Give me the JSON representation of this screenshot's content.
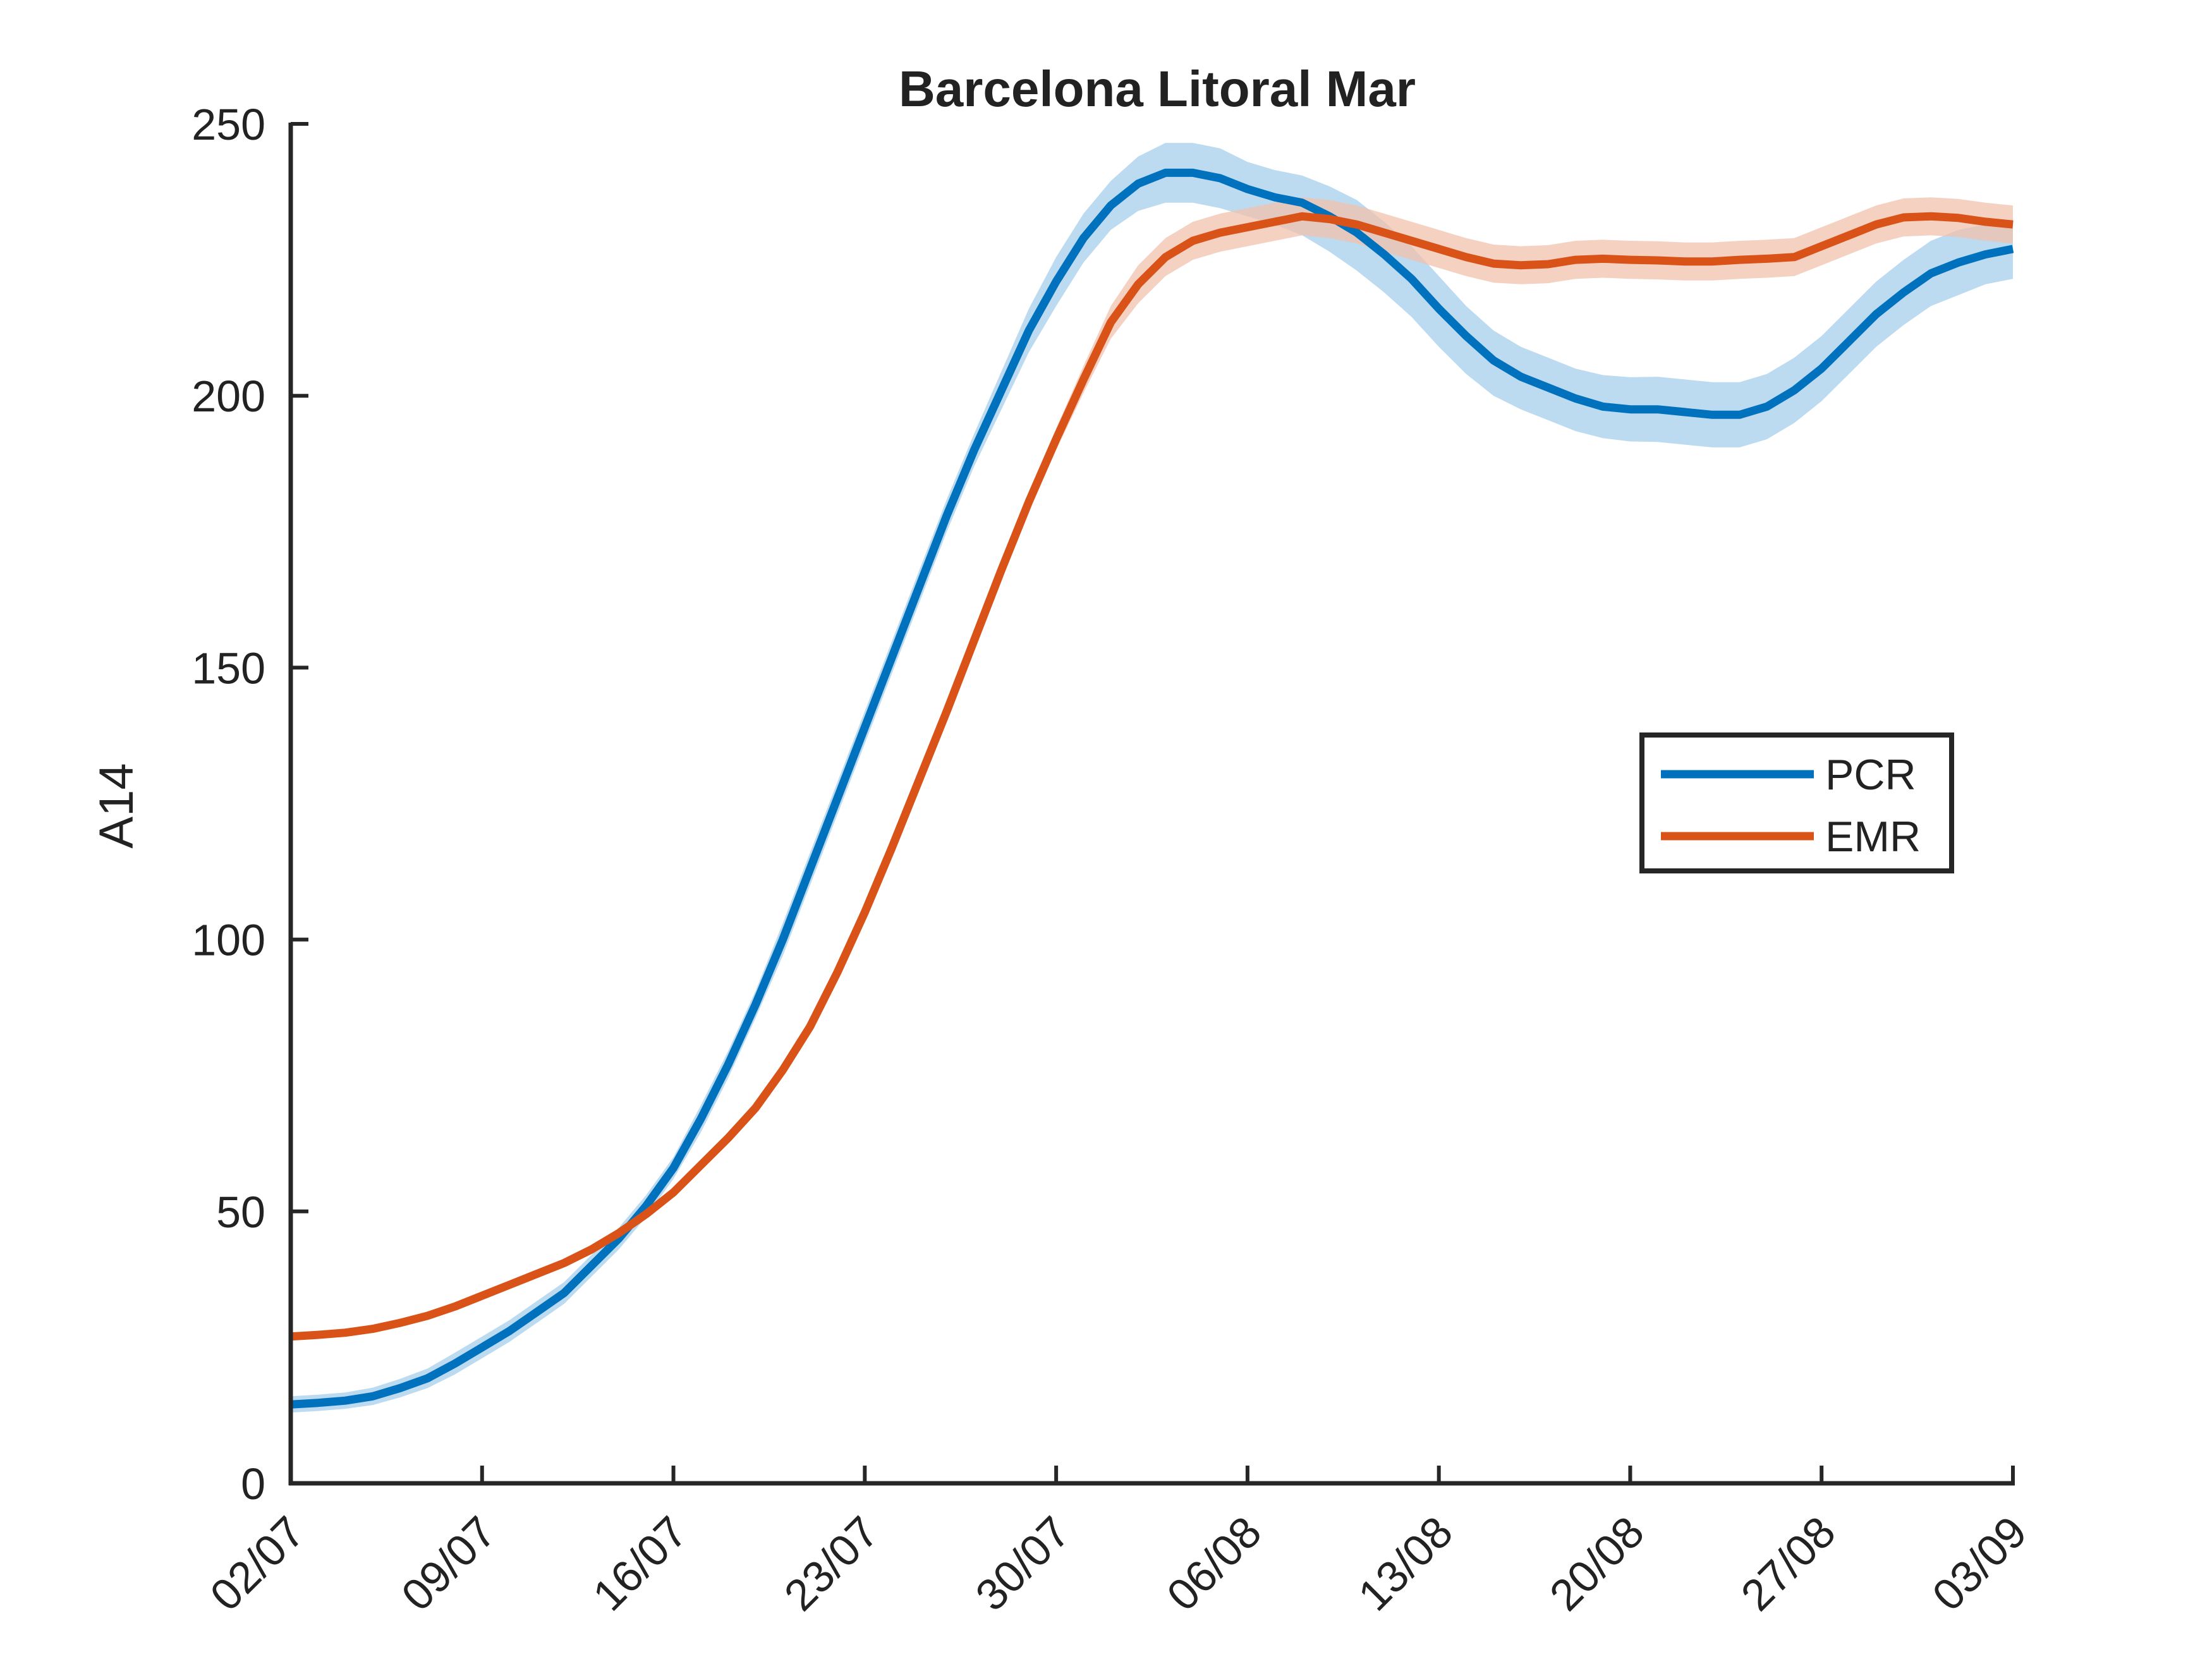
{
  "chart_data": {
    "type": "line",
    "title": "Barcelona Litoral Mar",
    "xlabel": "",
    "ylabel": "A14",
    "x_tick_labels": [
      "02/07",
      "09/07",
      "16/07",
      "23/07",
      "30/07",
      "06/08",
      "13/08",
      "20/08",
      "27/08",
      "03/09"
    ],
    "x_start": "2020-07-02",
    "x_end": "2020-09-03",
    "ylim": [
      0,
      250
    ],
    "y_ticks": [
      0,
      50,
      100,
      150,
      200,
      250
    ],
    "grid": false,
    "legend_position": "right",
    "series": [
      {
        "name": "PCR",
        "color": "#0072BD",
        "band_color": "#A6CDEB",
        "x": [
          "2020-07-02",
          "2020-07-03",
          "2020-07-04",
          "2020-07-05",
          "2020-07-06",
          "2020-07-07",
          "2020-07-08",
          "2020-07-09",
          "2020-07-10",
          "2020-07-11",
          "2020-07-12",
          "2020-07-13",
          "2020-07-14",
          "2020-07-15",
          "2020-07-16",
          "2020-07-17",
          "2020-07-18",
          "2020-07-19",
          "2020-07-20",
          "2020-07-21",
          "2020-07-22",
          "2020-07-23",
          "2020-07-24",
          "2020-07-25",
          "2020-07-26",
          "2020-07-27",
          "2020-07-28",
          "2020-07-29",
          "2020-07-30",
          "2020-07-31",
          "2020-08-01",
          "2020-08-02",
          "2020-08-03",
          "2020-08-04",
          "2020-08-05",
          "2020-08-06",
          "2020-08-07",
          "2020-08-08",
          "2020-08-09",
          "2020-08-10",
          "2020-08-11",
          "2020-08-12",
          "2020-08-13",
          "2020-08-14",
          "2020-08-15",
          "2020-08-16",
          "2020-08-17",
          "2020-08-18",
          "2020-08-19",
          "2020-08-20",
          "2020-08-21",
          "2020-08-22",
          "2020-08-23",
          "2020-08-24",
          "2020-08-25",
          "2020-08-26",
          "2020-08-27",
          "2020-08-28",
          "2020-08-29",
          "2020-08-30",
          "2020-08-31",
          "2020-09-01",
          "2020-09-02",
          "2020-09-03"
        ],
        "y": [
          14.5,
          14.8,
          15.2,
          16,
          17.5,
          19.3,
          22,
          25,
          28,
          31.5,
          35,
          40,
          45,
          51,
          58,
          67,
          77,
          88,
          100,
          113,
          126,
          139,
          152,
          165,
          178,
          190,
          201,
          212,
          221,
          229,
          235,
          239,
          241,
          241,
          240,
          238,
          236.5,
          235.5,
          233,
          230,
          226,
          221.5,
          216,
          211,
          206.5,
          203.5,
          201.5,
          199.5,
          198,
          197.5,
          197.5,
          197,
          196.5,
          196.5,
          198,
          201,
          205,
          210,
          215,
          219,
          222.5,
          224.5,
          226,
          227
        ],
        "y_lower": [
          13,
          13.3,
          13.7,
          14.4,
          15.8,
          17.5,
          20,
          23,
          26,
          29.5,
          33,
          38,
          43,
          49,
          56,
          64.5,
          74.5,
          85.5,
          97,
          110,
          123,
          136,
          149,
          162,
          175,
          187,
          197.5,
          208,
          216.5,
          224.5,
          230.5,
          234,
          235.5,
          235.5,
          234.5,
          233,
          231.5,
          229.5,
          226.5,
          223,
          219,
          214.5,
          209,
          204,
          200,
          197.5,
          195.5,
          193.5,
          192.2,
          191.6,
          191.5,
          191,
          190.5,
          190.5,
          192,
          195,
          199,
          204,
          209,
          213,
          216.5,
          218.5,
          220.5,
          221.5
        ],
        "y_upper": [
          16,
          16.3,
          16.7,
          17.6,
          19.2,
          21.1,
          24,
          27,
          30,
          33.5,
          37,
          42,
          47,
          53,
          60,
          69.5,
          79.5,
          90.5,
          103,
          116,
          129,
          142,
          155,
          168,
          181,
          193,
          204.5,
          216,
          225.5,
          233.5,
          239.5,
          244,
          246.5,
          246.5,
          245.5,
          243,
          241.5,
          240.5,
          238.5,
          236,
          232,
          227.5,
          222,
          216.5,
          212,
          209,
          207,
          205,
          203.8,
          203.4,
          203.5,
          203,
          202.5,
          202.5,
          204,
          207,
          211,
          216,
          221,
          225,
          228.5,
          230.5,
          231.5,
          232.5
        ]
      },
      {
        "name": "EMR",
        "color": "#D95319",
        "band_color": "#F2C1AD",
        "x": [
          "2020-07-02",
          "2020-07-03",
          "2020-07-04",
          "2020-07-05",
          "2020-07-06",
          "2020-07-07",
          "2020-07-08",
          "2020-07-09",
          "2020-07-10",
          "2020-07-11",
          "2020-07-12",
          "2020-07-13",
          "2020-07-14",
          "2020-07-15",
          "2020-07-16",
          "2020-07-17",
          "2020-07-18",
          "2020-07-19",
          "2020-07-20",
          "2020-07-21",
          "2020-07-22",
          "2020-07-23",
          "2020-07-24",
          "2020-07-25",
          "2020-07-26",
          "2020-07-27",
          "2020-07-28",
          "2020-07-29",
          "2020-07-30",
          "2020-07-31",
          "2020-08-01",
          "2020-08-02",
          "2020-08-03",
          "2020-08-04",
          "2020-08-05",
          "2020-08-06",
          "2020-08-07",
          "2020-08-08",
          "2020-08-09",
          "2020-08-10",
          "2020-08-11",
          "2020-08-12",
          "2020-08-13",
          "2020-08-14",
          "2020-08-15",
          "2020-08-16",
          "2020-08-17",
          "2020-08-18",
          "2020-08-19",
          "2020-08-20",
          "2020-08-21",
          "2020-08-22",
          "2020-08-23",
          "2020-08-24",
          "2020-08-25",
          "2020-08-26",
          "2020-08-27",
          "2020-08-28",
          "2020-08-29",
          "2020-08-30",
          "2020-08-31",
          "2020-09-01",
          "2020-09-02",
          "2020-09-03"
        ],
        "y": [
          27,
          27.3,
          27.7,
          28.4,
          29.5,
          30.8,
          32.5,
          34.5,
          36.5,
          38.5,
          40.5,
          43,
          46,
          49.5,
          53.5,
          58.5,
          63.5,
          69,
          76,
          84,
          94,
          105,
          117,
          129.5,
          142,
          155,
          168,
          180.5,
          192,
          203,
          213.5,
          220.5,
          225.5,
          228.5,
          230,
          231,
          232,
          233,
          232.5,
          231.5,
          230,
          228.5,
          227,
          225.5,
          224.3,
          224,
          224.2,
          225,
          225.2,
          225,
          224.9,
          224.7,
          224.7,
          225,
          225.2,
          225.5,
          227.5,
          229.5,
          231.5,
          232.8,
          233,
          232.7,
          232,
          231.5
        ],
        "y_lower": [
          26.5,
          26.8,
          27.2,
          27.9,
          29,
          30.3,
          32,
          34,
          36,
          38,
          40,
          42.5,
          45.5,
          49,
          53,
          58,
          63,
          68.5,
          75.5,
          83.5,
          93.5,
          104.5,
          116.5,
          129,
          141.5,
          154.5,
          167,
          179,
          190,
          200.5,
          210.5,
          217,
          222,
          225,
          226.5,
          227.5,
          228.5,
          229.5,
          229,
          228,
          226.5,
          225,
          223.5,
          222,
          220.8,
          220.5,
          220.7,
          221.5,
          221.7,
          221.5,
          221.4,
          221.2,
          221.2,
          221.5,
          221.7,
          222,
          224,
          226,
          228,
          229.3,
          229.5,
          229.2,
          228.5,
          228
        ],
        "y_upper": [
          27.5,
          27.8,
          28.2,
          28.9,
          30,
          31.3,
          33,
          35,
          37,
          39,
          41,
          43.5,
          46.5,
          50,
          54,
          59,
          64,
          69.5,
          76.5,
          84.5,
          94.5,
          105.5,
          117.5,
          130,
          142.5,
          155.5,
          169,
          182,
          194,
          205.5,
          216.5,
          224,
          229,
          232,
          233.5,
          234.5,
          235.5,
          236.5,
          236,
          235,
          233.5,
          232,
          230.5,
          229,
          227.8,
          227.5,
          227.7,
          228.5,
          228.7,
          228.5,
          228.4,
          228.2,
          228.2,
          228.5,
          228.7,
          229,
          231,
          233,
          235,
          236.3,
          236.5,
          236.2,
          235.5,
          235
        ]
      }
    ]
  }
}
